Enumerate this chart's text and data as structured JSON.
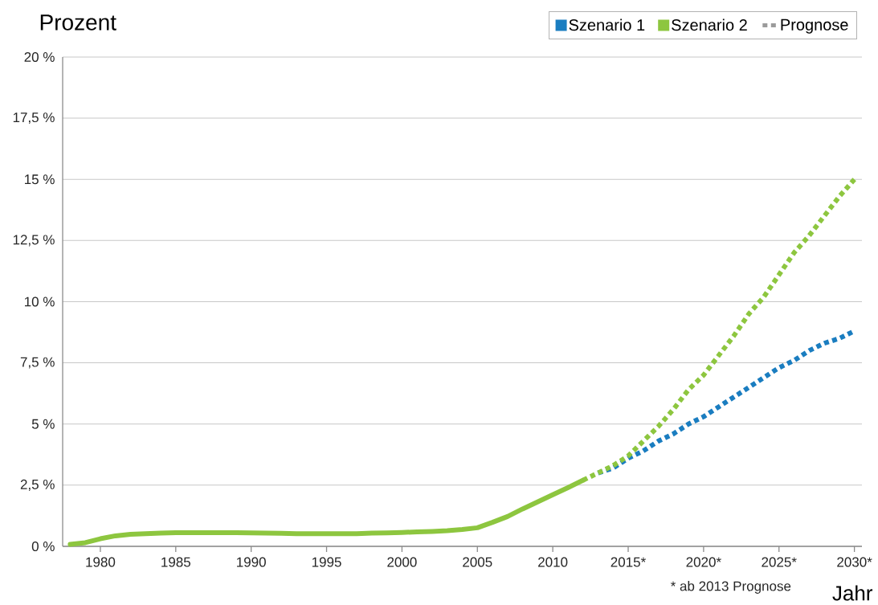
{
  "chart_data": {
    "type": "line",
    "ylabel": "Prozent",
    "xlabel": "Jahr",
    "annotations": [
      "* ab 2013 Prognose"
    ],
    "xlim": [
      1977.5,
      2030.5
    ],
    "ylim": [
      0,
      20
    ],
    "xticks": [
      1980,
      1985,
      1990,
      1995,
      2000,
      2005,
      2010,
      {
        "value": 2015,
        "label": "2015*"
      },
      {
        "value": 2020,
        "label": "2020*"
      },
      {
        "value": 2025,
        "label": "2025*"
      },
      {
        "value": 2030,
        "label": "2030*"
      }
    ],
    "yticks": [
      {
        "value": 0,
        "label": "0 %"
      },
      {
        "value": 2.5,
        "label": "2,5 %"
      },
      {
        "value": 5,
        "label": "5 %"
      },
      {
        "value": 7.5,
        "label": "7,5 %"
      },
      {
        "value": 10,
        "label": "10 %"
      },
      {
        "value": 12.5,
        "label": "12,5 %"
      },
      {
        "value": 15,
        "label": "15 %"
      },
      {
        "value": 17.5,
        "label": "17,5 %"
      },
      {
        "value": 20,
        "label": "20 %"
      }
    ],
    "grid": "y",
    "legend": "top right",
    "series": [
      {
        "color": "#8DC63F",
        "line_style": "solid",
        "x": [
          1978,
          1979,
          1980,
          1981,
          1982,
          1983,
          1984,
          1985,
          1986,
          1987,
          1988,
          1989,
          1990,
          1991,
          1992,
          1993,
          1994,
          1995,
          1996,
          1997,
          1998,
          1999,
          2000,
          2001,
          2002,
          2003,
          2004,
          2005,
          2006,
          2007,
          2008,
          2009,
          2010,
          2011,
          2012
        ],
        "values": [
          0.08,
          0.15,
          0.31,
          0.43,
          0.49,
          0.52,
          0.54,
          0.56,
          0.56,
          0.56,
          0.56,
          0.56,
          0.55,
          0.54,
          0.53,
          0.52,
          0.52,
          0.52,
          0.52,
          0.52,
          0.54,
          0.55,
          0.57,
          0.59,
          0.61,
          0.64,
          0.69,
          0.76,
          0.98,
          1.22,
          1.53,
          1.82,
          2.11,
          2.4,
          2.7
        ]
      },
      {
        "name": "Szenario 1",
        "color": "#1A7DC0",
        "line_style": "dotted",
        "x": [
          2013,
          2014,
          2015,
          2016,
          2017,
          2018,
          2019,
          2020,
          2021,
          2022,
          2023,
          2024,
          2025,
          2026,
          2027,
          2028,
          2029,
          2030
        ],
        "values": [
          3.0,
          3.2,
          3.6,
          3.9,
          4.3,
          4.6,
          5.0,
          5.3,
          5.7,
          6.1,
          6.5,
          6.9,
          7.3,
          7.6,
          8.0,
          8.3,
          8.5,
          8.8
        ]
      },
      {
        "name": "Szenario 2",
        "color": "#8DC63F",
        "line_style": "dotted",
        "x": [
          2012,
          2013,
          2014,
          2015,
          2016,
          2017,
          2018,
          2019,
          2020,
          2021,
          2022,
          2023,
          2024,
          2025,
          2026,
          2027,
          2028,
          2029,
          2030
        ],
        "values": [
          2.7,
          3.0,
          3.3,
          3.7,
          4.3,
          4.9,
          5.6,
          6.4,
          7.0,
          7.8,
          8.6,
          9.5,
          10.2,
          11.1,
          12.0,
          12.7,
          13.5,
          14.3,
          15.0
        ]
      },
      {
        "name": "Prognose",
        "color": "#9B9B9B",
        "line_style": "dotted"
      }
    ]
  }
}
